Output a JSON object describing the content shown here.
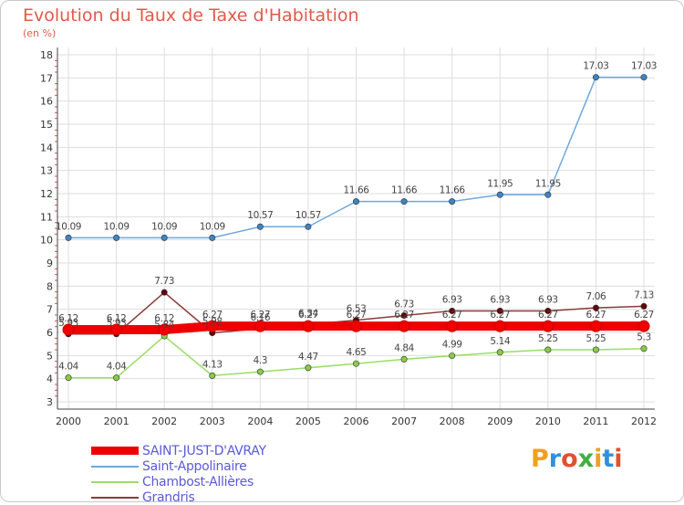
{
  "title": "Evolution du Taux de Taxe d'Habitation",
  "subtitle": "(en %)",
  "logo": {
    "text": "Proxiti",
    "colors": [
      "#f0a020",
      "#3090e0",
      "#e05030",
      "#40b040",
      "#f0a020",
      "#3090e0",
      "#e05030"
    ]
  },
  "chart_data": {
    "type": "line",
    "x": [
      "2000",
      "2001",
      "2002",
      "2003",
      "2004",
      "2005",
      "2006",
      "2007",
      "2008",
      "2009",
      "2010",
      "2011",
      "2012"
    ],
    "ylim": [
      3,
      18
    ],
    "yticks": [
      "3",
      "4",
      "5",
      "6",
      "7",
      "8",
      "9",
      "10",
      "11",
      "12",
      "13",
      "14",
      "15",
      "16",
      "17",
      "18"
    ],
    "grid": true,
    "legend_position": "bottom-left",
    "series": [
      {
        "name": "SAINT-JUST-D'AVRAY",
        "color": "#ee0000",
        "values": [
          6.12,
          6.12,
          6.12,
          6.27,
          6.27,
          6.27,
          6.27,
          6.27,
          6.27,
          6.27,
          6.27,
          6.27,
          6.27
        ],
        "labels": [
          "6.12",
          "6.12",
          "6.12",
          "6.27",
          "6.27",
          "6.27",
          "6.27",
          "6.27",
          "6.27",
          "6.27",
          "6.27",
          "6.27",
          "6.27"
        ]
      },
      {
        "name": "Saint-Appolinaire",
        "color": "#6fa8dc",
        "values": [
          10.09,
          10.09,
          10.09,
          10.09,
          10.57,
          10.57,
          11.66,
          11.66,
          11.66,
          11.95,
          11.95,
          17.03,
          17.03
        ],
        "labels": [
          "10.09",
          "10.09",
          "10.09",
          "10.09",
          "10.57",
          "10.57",
          "11.66",
          "11.66",
          "11.66",
          "11.95",
          "11.95",
          "17.03",
          "17.03"
        ]
      },
      {
        "name": "Chambost-Allières",
        "color": "#99dd66",
        "values": [
          4.04,
          4.04,
          5.84,
          4.13,
          4.3,
          4.47,
          4.65,
          4.84,
          4.99,
          5.14,
          5.25,
          5.25,
          5.3
        ],
        "labels": [
          "4.04",
          "4.04",
          "5.84",
          "4.13",
          "4.3",
          "4.47",
          "4.65",
          "4.84",
          "4.99",
          "5.14",
          "5.25",
          "5.25",
          "5.3"
        ]
      },
      {
        "name": "Grandris",
        "color": "#8b3a3a",
        "values": [
          5.93,
          5.93,
          7.73,
          5.98,
          6.16,
          6.34,
          6.53,
          6.73,
          6.93,
          6.93,
          6.93,
          7.06,
          7.13
        ],
        "labels": [
          "5.93",
          "5.93",
          "7.73",
          "5.98",
          "6.16",
          "6.34",
          "6.53",
          "6.73",
          "6.93",
          "6.93",
          "6.93",
          "7.06",
          "7.13"
        ]
      }
    ]
  }
}
